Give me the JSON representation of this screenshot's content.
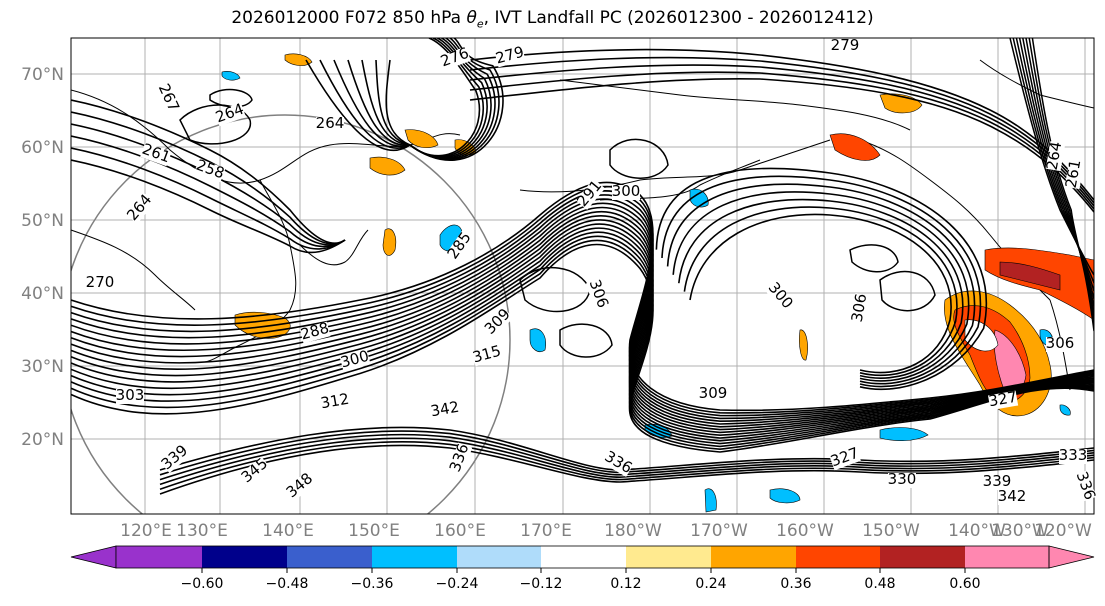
{
  "figure": {
    "title_prefix": "2026012000 F072 850 hPa ",
    "title_symbol": "θ",
    "title_symbol_sub": "e",
    "title_suffix": ", IVT Landfall PC (2026012300 - 2026012412)"
  },
  "axes": {
    "lat_labels": [
      "70°N",
      "60°N",
      "50°N",
      "40°N",
      "30°N",
      "20°N"
    ],
    "lon_labels": [
      "120°E",
      "130°E",
      "140°E",
      "150°E",
      "160°E",
      "170°E",
      "180°W",
      "170°W",
      "160°W",
      "150°W",
      "140°W",
      "130°W",
      "120°W"
    ],
    "label_color": "#808080"
  },
  "contour_labels": [
    {
      "text": "276"
    },
    {
      "text": "279"
    },
    {
      "text": "279"
    },
    {
      "text": "267"
    },
    {
      "text": "264"
    },
    {
      "text": "264"
    },
    {
      "text": "261"
    },
    {
      "text": "258"
    },
    {
      "text": "264"
    },
    {
      "text": "270"
    },
    {
      "text": "285"
    },
    {
      "text": "288"
    },
    {
      "text": "300"
    },
    {
      "text": "303"
    },
    {
      "text": "312"
    },
    {
      "text": "309"
    },
    {
      "text": "315"
    },
    {
      "text": "342"
    },
    {
      "text": "336"
    },
    {
      "text": "339"
    },
    {
      "text": "291"
    },
    {
      "text": "300"
    },
    {
      "text": "306"
    },
    {
      "text": "300"
    },
    {
      "text": "306"
    },
    {
      "text": "309"
    },
    {
      "text": "327"
    },
    {
      "text": "336"
    },
    {
      "text": "330"
    },
    {
      "text": "339"
    },
    {
      "text": "342"
    },
    {
      "text": "333"
    },
    {
      "text": "336"
    },
    {
      "text": "261"
    },
    {
      "text": "264"
    },
    {
      "text": "327"
    },
    {
      "text": "306"
    },
    {
      "text": "345"
    },
    {
      "text": "348"
    }
  ],
  "colorbar": {
    "ticks": [
      "−0.60",
      "−0.48",
      "−0.36",
      "−0.24",
      "−0.12",
      "0.12",
      "0.24",
      "0.36",
      "0.48",
      "0.60"
    ],
    "colors": [
      "#9932cc",
      "#00008b",
      "#3a5fcd",
      "#00bfff",
      "#afdcfa",
      "#ffffff",
      "#ffea8f",
      "#ffa500",
      "#ff4500",
      "#b22222",
      "#ff87b0"
    ]
  }
}
